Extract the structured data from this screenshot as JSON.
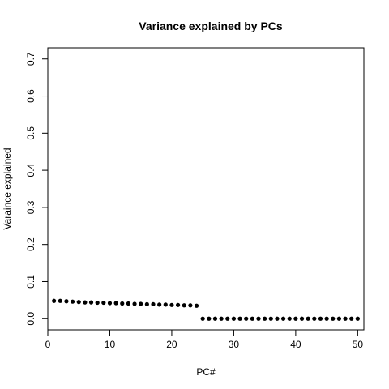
{
  "chart_data": {
    "type": "scatter",
    "title": "Variance explained by PCs",
    "xlabel": "PC#",
    "ylabel": "Varaince explained",
    "xlim": [
      0,
      51
    ],
    "ylim": [
      -0.03,
      0.73
    ],
    "xticks": [
      0,
      10,
      20,
      30,
      40,
      50
    ],
    "yticks": [
      0.0,
      0.1,
      0.2,
      0.3,
      0.4,
      0.5,
      0.6,
      0.7
    ],
    "ytick_labels": [
      "0.0",
      "0.1",
      "0.2",
      "0.3",
      "0.4",
      "0.5",
      "0.6",
      "0.7"
    ],
    "point_color": "#000000",
    "grid": false,
    "legend": "none",
    "x": [
      1,
      2,
      3,
      4,
      5,
      6,
      7,
      8,
      9,
      10,
      11,
      12,
      13,
      14,
      15,
      16,
      17,
      18,
      19,
      20,
      21,
      22,
      23,
      24,
      25,
      26,
      27,
      28,
      29,
      30,
      31,
      32,
      33,
      34,
      35,
      36,
      37,
      38,
      39,
      40,
      41,
      42,
      43,
      44,
      45,
      46,
      47,
      48,
      49,
      50
    ],
    "y": [
      0.048,
      0.048,
      0.047,
      0.046,
      0.045,
      0.044,
      0.044,
      0.043,
      0.043,
      0.042,
      0.042,
      0.041,
      0.041,
      0.04,
      0.04,
      0.039,
      0.039,
      0.038,
      0.038,
      0.037,
      0.037,
      0.036,
      0.036,
      0.035,
      0.0,
      0.0,
      0.0,
      0.0,
      0.0,
      0.0,
      0.0,
      0.0,
      0.0,
      0.0,
      0.0,
      0.0,
      0.0,
      0.0,
      0.0,
      0.0,
      0.0,
      0.0,
      0.0,
      0.0,
      0.0,
      0.0,
      0.0,
      0.0,
      0.0,
      0.0
    ]
  }
}
